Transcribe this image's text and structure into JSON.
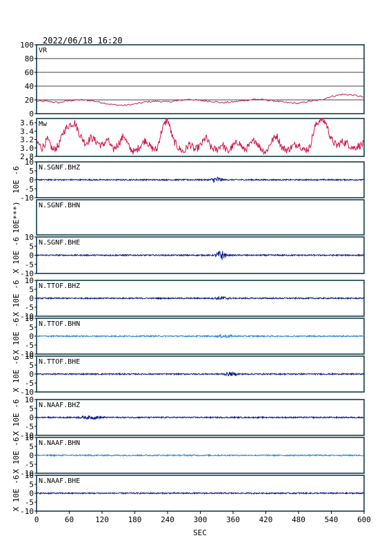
{
  "timestamp": "2022/06/18 16:20",
  "xaxis": {
    "label": "SEC",
    "ticks": [
      "0",
      "60",
      "120",
      "180",
      "240",
      "300",
      "360",
      "420",
      "480",
      "540",
      "600"
    ],
    "range": [
      0,
      600
    ]
  },
  "colors": {
    "vr": "#d0184a",
    "mw": "#d0184a",
    "dark_blue": "#0a1a8c",
    "light_blue": "#2f86d8",
    "frame": "#123a4a",
    "axis_text": "#000000"
  },
  "chart_data": [
    {
      "type": "line",
      "panel": "VR",
      "title": "VR",
      "ylim": [
        0,
        100
      ],
      "ytick_labels": [
        "100",
        "80",
        "60",
        "40",
        "20",
        "0"
      ],
      "grid": true,
      "x": [
        0,
        20,
        40,
        60,
        80,
        100,
        120,
        140,
        160,
        180,
        200,
        220,
        240,
        260,
        280,
        300,
        320,
        340,
        360,
        380,
        400,
        420,
        440,
        460,
        480,
        500,
        520,
        540,
        560,
        580,
        600
      ],
      "values": [
        18,
        18,
        16,
        19,
        20,
        19,
        16,
        13,
        12,
        14,
        17,
        18,
        17,
        19,
        21,
        19,
        18,
        16,
        17,
        19,
        21,
        20,
        18,
        16,
        15,
        18,
        20,
        25,
        28,
        27,
        24
      ]
    },
    {
      "type": "line",
      "panel": "Mw",
      "title": "Mw",
      "ylim": [
        2.8,
        3.7
      ],
      "ytick_labels": [
        "3.6",
        "3.4",
        "3.2",
        "3.0",
        "2.8"
      ],
      "x": [
        0,
        10,
        20,
        30,
        40,
        50,
        60,
        70,
        80,
        90,
        100,
        110,
        120,
        130,
        140,
        150,
        160,
        170,
        180,
        190,
        200,
        210,
        220,
        230,
        240,
        250,
        260,
        270,
        280,
        290,
        300,
        310,
        320,
        330,
        340,
        350,
        360,
        370,
        380,
        390,
        400,
        410,
        420,
        430,
        440,
        450,
        460,
        470,
        480,
        490,
        500,
        510,
        520,
        530,
        540,
        550,
        560,
        570,
        580,
        590,
        600
      ],
      "values": [
        3.15,
        3.0,
        3.2,
        2.95,
        3.05,
        3.4,
        3.55,
        3.6,
        3.3,
        3.1,
        3.25,
        3.15,
        3.05,
        3.2,
        2.95,
        3.1,
        3.3,
        3.0,
        2.9,
        3.05,
        3.2,
        3.0,
        2.95,
        3.45,
        3.7,
        3.2,
        3.0,
        2.9,
        3.1,
        2.95,
        3.05,
        3.25,
        3.0,
        2.95,
        3.1,
        2.9,
        3.05,
        3.15,
        2.95,
        3.05,
        3.2,
        3.0,
        2.9,
        3.15,
        3.3,
        3.0,
        2.95,
        3.05,
        3.1,
        2.95,
        3.0,
        3.5,
        3.7,
        3.6,
        3.2,
        3.05,
        3.15,
        3.1,
        3.0,
        3.05,
        3.1
      ]
    },
    {
      "type": "line",
      "panel": "trace",
      "title": "N.SGNF.BHZ",
      "ylim": [
        -10,
        10
      ],
      "ytick_labels": [
        "10",
        "5",
        "0",
        "-5",
        "-10"
      ],
      "ylabel": "10E -6",
      "color_key": "dark_blue",
      "events": [
        {
          "x": 330,
          "amplitude": 1.8,
          "width": 14
        }
      ]
    },
    {
      "type": "line",
      "panel": "trace",
      "title": "N.SGNF.BHN",
      "ylim": null,
      "ytick_labels": [],
      "ylabel": "10E***)",
      "color_key": "dark_blue",
      "empty": true,
      "events": []
    },
    {
      "type": "line",
      "panel": "trace",
      "title": "N.SGNF.BHE",
      "ylim": [
        -10,
        10
      ],
      "ytick_labels": [
        "10",
        "5",
        "0",
        "-5",
        "-10"
      ],
      "ylabel": "X 10E -6",
      "color_key": "dark_blue",
      "events": [
        {
          "x": 338,
          "amplitude": 3.0,
          "width": 12
        }
      ]
    },
    {
      "type": "line",
      "panel": "trace",
      "title": "N.TTOF.BHZ",
      "ylim": [
        -10,
        10
      ],
      "ytick_labels": [
        "10",
        "5",
        "0",
        "-5",
        "-10"
      ],
      "ylabel": "X 10E -6",
      "color_key": "dark_blue",
      "events": [
        {
          "x": 340,
          "amplitude": 0.8,
          "width": 20
        }
      ]
    },
    {
      "type": "line",
      "panel": "trace",
      "title": "N.TTOF.BHN",
      "ylim": [
        -10,
        10
      ],
      "ytick_labels": [
        "10",
        "5",
        "0",
        "-5",
        "-10"
      ],
      "ylabel": "X 10E -6",
      "color_key": "light_blue",
      "events": [
        {
          "x": 345,
          "amplitude": 0.7,
          "width": 20
        }
      ]
    },
    {
      "type": "line",
      "panel": "trace",
      "title": "N.TTOF.BHE",
      "ylim": [
        -10,
        10
      ],
      "ytick_labels": [
        "10",
        "5",
        "0",
        "-5",
        "-10"
      ],
      "ylabel": "X 10E -6",
      "color_key": "dark_blue",
      "events": [
        {
          "x": 355,
          "amplitude": 0.8,
          "width": 20
        }
      ]
    },
    {
      "type": "line",
      "panel": "trace",
      "title": "N.NAAF.BHZ",
      "ylim": [
        -10,
        10
      ],
      "ytick_labels": [
        "10",
        "5",
        "0",
        "-5",
        "-10"
      ],
      "ylabel": "X 10E -6",
      "color_key": "dark_blue",
      "events": [
        {
          "x": 100,
          "amplitude": 0.8,
          "width": 30
        }
      ]
    },
    {
      "type": "line",
      "panel": "trace",
      "title": "N.NAAF.BHN",
      "ylim": [
        -10,
        10
      ],
      "ytick_labels": [
        "10",
        "5",
        "0",
        "-5",
        "-10"
      ],
      "ylabel": "X 10E -6",
      "color_key": "light_blue",
      "events": []
    },
    {
      "type": "line",
      "panel": "trace",
      "title": "N.NAAF.BHE",
      "ylim": [
        -10,
        10
      ],
      "ytick_labels": [
        "10",
        "5",
        "0",
        "-5",
        "-10"
      ],
      "ylabel": "X 10E -6",
      "color_key": "dark_blue",
      "events": []
    }
  ]
}
